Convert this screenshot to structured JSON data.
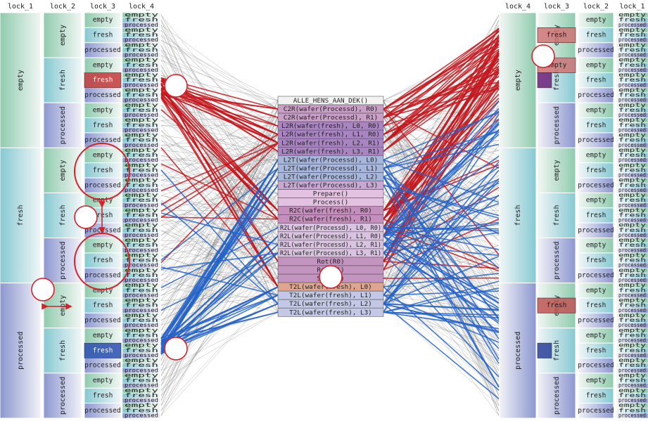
{
  "headers": {
    "left": [
      "lock_1",
      "lock_2",
      "lock_3",
      "lock_4"
    ],
    "right": [
      "lock_4",
      "lock_3",
      "lock_2",
      "lock_1"
    ]
  },
  "states": [
    "empty",
    "fresh",
    "processed"
  ],
  "lock4_glyphs": [
    "empty",
    "fresh",
    "processed"
  ],
  "actions": [
    "ALLE_HENS_AAN_DEK()",
    "C2R(wafer(Processd), R0)",
    "C2R(wafer(Processd), R1)",
    "L2R(wafer(fresh), L0, R0)",
    "L2R(wafer(fresh), L1, R0)",
    "L2R(wafer(fresh), L2, R1)",
    "L2R(wafer(fresh), L3, R1)",
    "L2T(wafer(Processd), L0)",
    "L2T(wafer(Processd), L1)",
    "L2T(wafer(Processd), L2)",
    "L2T(wafer(Processd), L3)",
    "Prepare()",
    "Process()",
    "R2C(wafer(fresh), R0)",
    "R2C(wafer(fresh), R1)",
    "R2L(wafer(Processd), L0, R0)",
    "R2L(wafer(Processd), L1, R0)",
    "R2L(wafer(Processd), L2, R1)",
    "R2L(wafer(Processd), L3, R1)",
    "Rot(R0)",
    "Rot(R1)",
    "Start()",
    "T2L(wafer(fresh), L0)",
    "T2L(wafer(fresh), L1)",
    "T2L(wafer(fresh), L2)",
    "T2L(wafer(fresh), L3)"
  ],
  "colors": {
    "empty": "#bfe3cf",
    "fresh": "#b4dde2",
    "processed": "#b7bee0",
    "red_edge": "#c4161c",
    "blue_edge": "#2463c9",
    "gray_edge": "#6e6e6e",
    "annotation": "#d8202a"
  }
}
